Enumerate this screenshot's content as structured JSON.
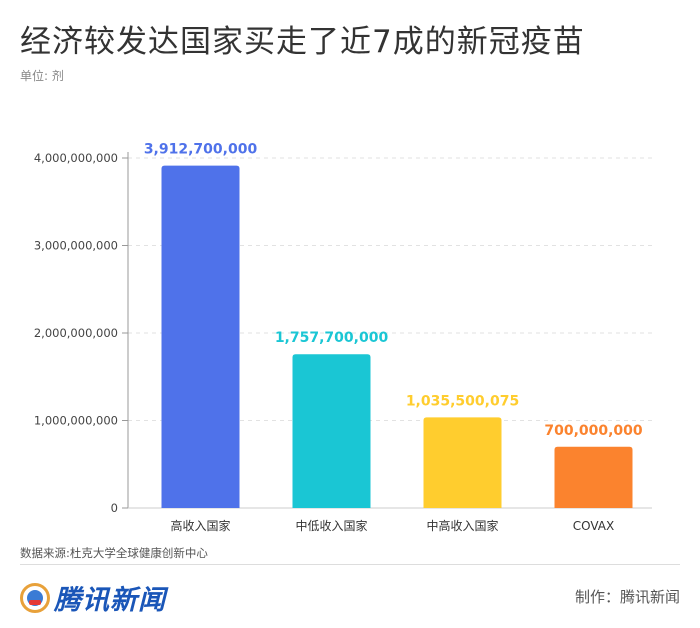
{
  "title": "经济较发达国家买走了近7成的新冠疫苗",
  "unit_label": "单位: 剂",
  "chart_data": {
    "type": "bar",
    "categories": [
      "高收入国家",
      "中低收入国家",
      "中高收入国家",
      "COVAX"
    ],
    "values": [
      3912700000,
      1757700000,
      1035500075,
      700000000
    ],
    "value_labels": [
      "3,912,700,000",
      "1,757,700,000",
      "1,035,500,075",
      "700,000,000"
    ],
    "colors": [
      "#4f72ea",
      "#1ac6d4",
      "#ffcd2e",
      "#fb832e"
    ],
    "ylim": [
      0,
      4000000000
    ],
    "yticks": [
      0,
      1000000000,
      2000000000,
      3000000000,
      4000000000
    ],
    "ytick_labels": [
      "0",
      "1,000,000,000",
      "2,000,000,000",
      "3,000,000,000",
      "4,000,000,000"
    ],
    "grid": true,
    "xlabel": "",
    "ylabel": ""
  },
  "source": "数据来源:杜克大学全球健康创新中心",
  "logo_text": "腾讯新闻",
  "credit": "制作：腾讯新闻"
}
